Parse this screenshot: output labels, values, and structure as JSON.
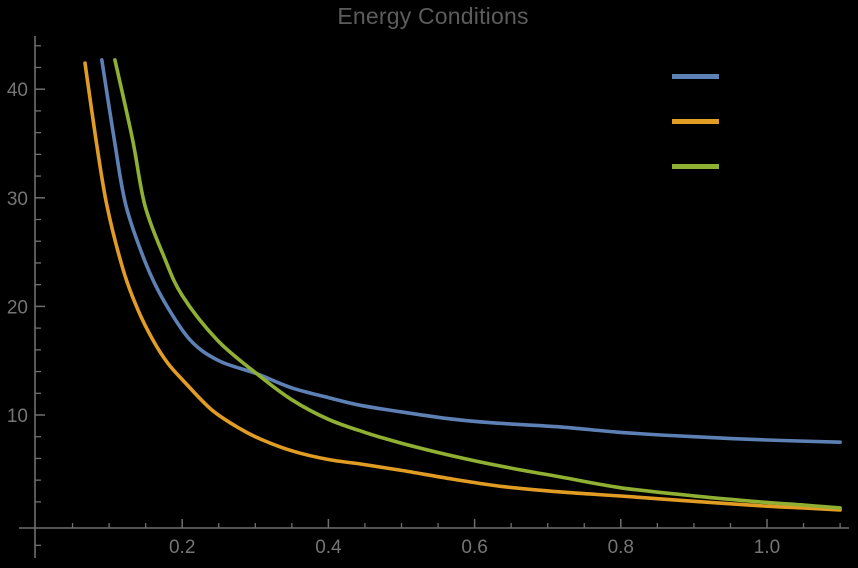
{
  "title": "Energy Conditions",
  "colors": {
    "background": "#000000",
    "axis": "#6f6f6f",
    "tick_label": "#757575",
    "title": "#5c5c5c",
    "series_blue": "#5e81b5",
    "series_orange": "#e19c24",
    "series_green": "#8fb032"
  },
  "chart_data": {
    "type": "line",
    "title": "Energy Conditions",
    "xlabel": "",
    "ylabel": "",
    "xlim": [
      0,
      1.1
    ],
    "ylim": [
      0,
      44
    ],
    "grid": false,
    "legend_position": "top-right",
    "x_major_ticks": [
      0.2,
      0.4,
      0.6,
      0.8,
      1.0
    ],
    "x_major_tick_labels": [
      "0.2",
      "0.4",
      "0.6",
      "0.8",
      "1.0"
    ],
    "x_minor_ticks": [
      0.05,
      0.1,
      0.15,
      0.25,
      0.3,
      0.35,
      0.45,
      0.5,
      0.55,
      0.65,
      0.7,
      0.75,
      0.85,
      0.9,
      0.95,
      1.05,
      1.1
    ],
    "y_major_ticks": [
      10,
      20,
      30,
      40
    ],
    "y_major_tick_labels": [
      "10",
      "20",
      "30",
      "40"
    ],
    "y_minor_ticks": [
      -2,
      2,
      4,
      6,
      8,
      12,
      14,
      16,
      18,
      22,
      24,
      26,
      28,
      32,
      34,
      36,
      38,
      42,
      44
    ],
    "series": [
      {
        "name": "blue-curve",
        "color": "#5e81b5",
        "x": [
          0.09,
          0.107,
          0.123,
          0.15,
          0.175,
          0.211,
          0.25,
          0.302,
          0.35,
          0.4,
          0.443,
          0.498,
          0.56,
          0.62,
          0.717,
          0.8,
          0.9,
          1.0,
          1.1
        ],
        "y": [
          42.7,
          35.4,
          29.3,
          24.0,
          20.5,
          16.9,
          15.0,
          13.8,
          12.5,
          11.6,
          10.9,
          10.3,
          9.7,
          9.3,
          8.9,
          8.4,
          8.0,
          7.7,
          7.5
        ]
      },
      {
        "name": "orange-curve",
        "color": "#e19c24",
        "x": [
          0.067,
          0.082,
          0.097,
          0.12,
          0.14,
          0.16,
          0.18,
          0.201,
          0.24,
          0.28,
          0.31,
          0.35,
          0.4,
          0.443,
          0.5,
          0.57,
          0.64,
          0.72,
          0.8,
          0.9,
          1.0,
          1.05,
          1.1
        ],
        "y": [
          42.4,
          35.4,
          29.3,
          23.2,
          19.6,
          16.9,
          14.8,
          13.2,
          10.5,
          8.7,
          7.7,
          6.7,
          5.9,
          5.5,
          4.9,
          4.1,
          3.4,
          2.9,
          2.54,
          2.05,
          1.6,
          1.45,
          1.25
        ]
      },
      {
        "name": "green-curve",
        "color": "#8fb032",
        "x": [
          0.108,
          0.132,
          0.149,
          0.175,
          0.2,
          0.248,
          0.302,
          0.35,
          0.4,
          0.45,
          0.5,
          0.566,
          0.635,
          0.717,
          0.8,
          0.9,
          0.99,
          1.05,
          1.1
        ],
        "y": [
          42.7,
          35.4,
          29.3,
          24.6,
          21.0,
          16.9,
          13.8,
          11.4,
          9.6,
          8.4,
          7.4,
          6.3,
          5.3,
          4.3,
          3.3,
          2.55,
          2.0,
          1.7,
          1.45
        ]
      }
    ],
    "legend": {
      "items": [
        {
          "color": "#5e81b5",
          "label": ""
        },
        {
          "color": "#e19c24",
          "label": ""
        },
        {
          "color": "#8fb032",
          "label": ""
        }
      ]
    }
  }
}
